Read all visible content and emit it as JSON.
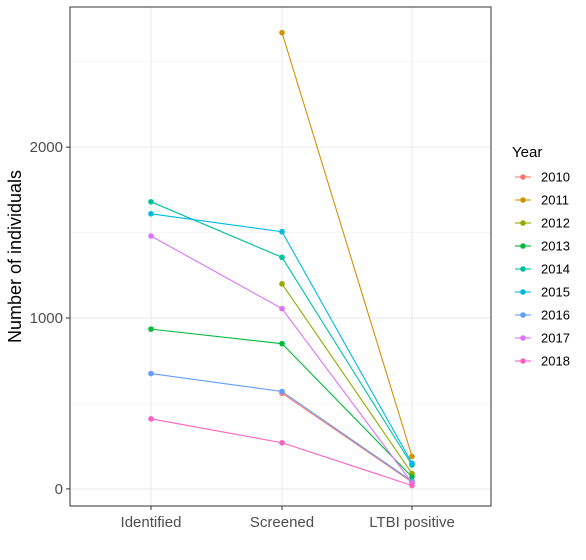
{
  "chart_data": {
    "type": "line",
    "title": "",
    "xlabel": "",
    "ylabel": "Number of individuals",
    "categories": [
      "Identified",
      "Screened",
      "LTBI positive"
    ],
    "ylim": [
      -100,
      2820
    ],
    "yticks": [
      0,
      1000,
      2000
    ],
    "grid": true,
    "legend": {
      "title": "Year",
      "position": "right"
    },
    "series": [
      {
        "name": "2010",
        "color": "#F8766D",
        "values": [
          null,
          560,
          40
        ]
      },
      {
        "name": "2011",
        "color": "#D39200",
        "values": [
          null,
          2670,
          190
        ]
      },
      {
        "name": "2012",
        "color": "#93AA00",
        "values": [
          null,
          1200,
          90
        ]
      },
      {
        "name": "2013",
        "color": "#00BA38",
        "values": [
          935,
          850,
          70
        ]
      },
      {
        "name": "2014",
        "color": "#00C19F",
        "values": [
          1680,
          1355,
          140
        ]
      },
      {
        "name": "2015",
        "color": "#00B9E3",
        "values": [
          1610,
          1505,
          150
        ]
      },
      {
        "name": "2016",
        "color": "#619CFF",
        "values": [
          675,
          570,
          45
        ]
      },
      {
        "name": "2017",
        "color": "#DB72FB",
        "values": [
          1480,
          1055,
          35
        ]
      },
      {
        "name": "2018",
        "color": "#FF61C3",
        "values": [
          410,
          270,
          20
        ]
      }
    ]
  }
}
